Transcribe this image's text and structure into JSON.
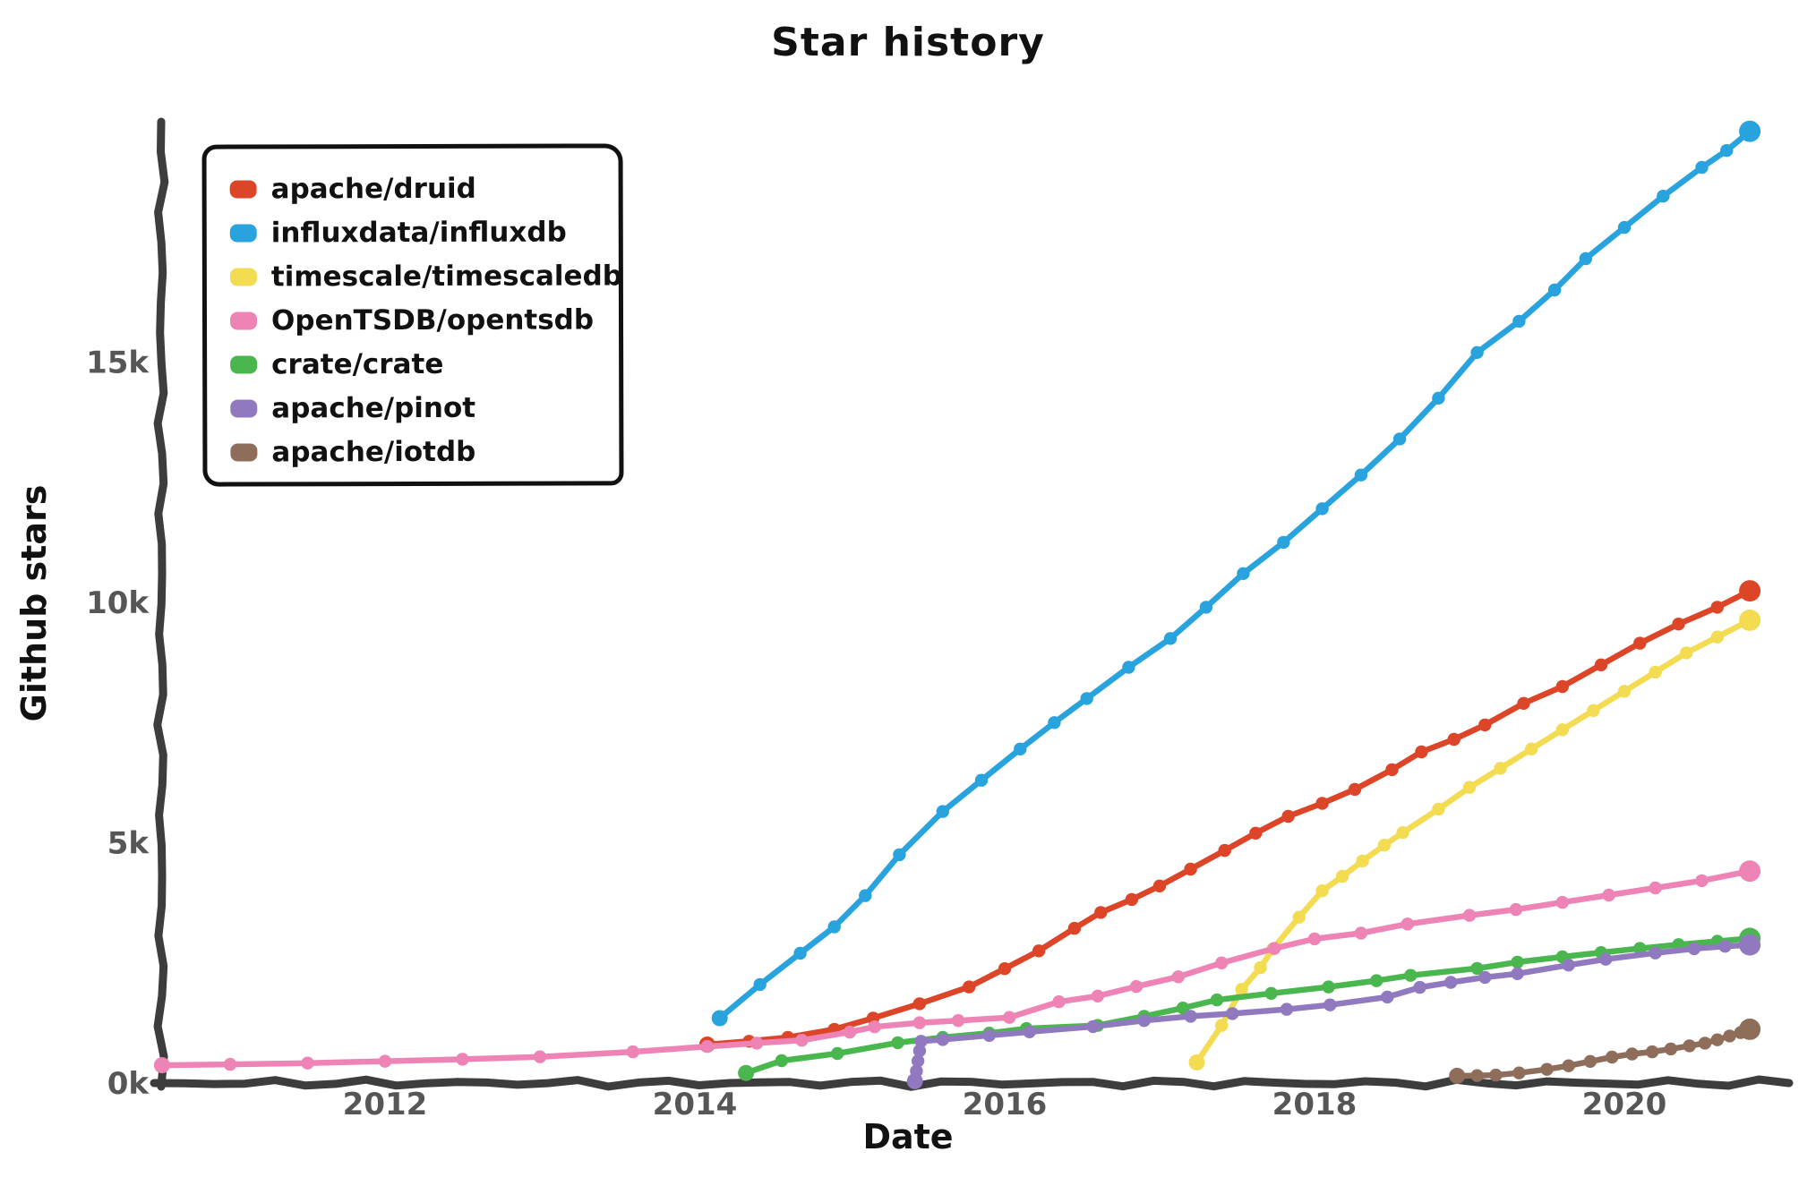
{
  "chart_data": {
    "type": "line",
    "title": "Star history",
    "xlabel": "Date",
    "ylabel": "Github stars",
    "grid": false,
    "legend_position": "top-left",
    "background_color": "#ffffff",
    "axis_color": "#3d3d3d",
    "tick_label_color": "#565656",
    "x_range": [
      2010.55,
      2021.0
    ],
    "y_range": [
      0,
      20500
    ],
    "x_ticks": [
      {
        "label": "2012",
        "year": 2012
      },
      {
        "label": "2014",
        "year": 2014
      },
      {
        "label": "2016",
        "year": 2016
      },
      {
        "label": "2018",
        "year": 2018
      },
      {
        "label": "2020",
        "year": 2020
      }
    ],
    "y_ticks": [
      {
        "label": "0k",
        "value": 0
      },
      {
        "label": "5k",
        "value": 5000
      },
      {
        "label": "10k",
        "value": 10000
      },
      {
        "label": "15k",
        "value": 15000
      }
    ],
    "series": [
      {
        "name": "apache/druid",
        "color": "#dd4528",
        "points": [
          [
            2014.08,
            800
          ],
          [
            2014.35,
            870
          ],
          [
            2014.6,
            950
          ],
          [
            2014.9,
            1120
          ],
          [
            2015.15,
            1350
          ],
          [
            2015.45,
            1650
          ],
          [
            2015.77,
            2000
          ],
          [
            2016.0,
            2380
          ],
          [
            2016.22,
            2750
          ],
          [
            2016.45,
            3220
          ],
          [
            2016.62,
            3550
          ],
          [
            2016.82,
            3820
          ],
          [
            2017.0,
            4100
          ],
          [
            2017.2,
            4450
          ],
          [
            2017.42,
            4840
          ],
          [
            2017.62,
            5200
          ],
          [
            2017.83,
            5550
          ],
          [
            2018.05,
            5820
          ],
          [
            2018.26,
            6110
          ],
          [
            2018.5,
            6520
          ],
          [
            2018.69,
            6890
          ],
          [
            2018.9,
            7150
          ],
          [
            2019.1,
            7450
          ],
          [
            2019.35,
            7900
          ],
          [
            2019.6,
            8250
          ],
          [
            2019.85,
            8700
          ],
          [
            2020.1,
            9150
          ],
          [
            2020.35,
            9550
          ],
          [
            2020.6,
            9900
          ],
          [
            2020.81,
            10240
          ]
        ]
      },
      {
        "name": "influxdata/influxdb",
        "color": "#28a3dd",
        "points": [
          [
            2014.16,
            1350
          ],
          [
            2014.42,
            2050
          ],
          [
            2014.68,
            2700
          ],
          [
            2014.9,
            3250
          ],
          [
            2015.1,
            3900
          ],
          [
            2015.32,
            4750
          ],
          [
            2015.6,
            5650
          ],
          [
            2015.85,
            6300
          ],
          [
            2016.1,
            6950
          ],
          [
            2016.32,
            7500
          ],
          [
            2016.53,
            8000
          ],
          [
            2016.8,
            8650
          ],
          [
            2017.07,
            9250
          ],
          [
            2017.3,
            9900
          ],
          [
            2017.54,
            10600
          ],
          [
            2017.8,
            11250
          ],
          [
            2018.05,
            11950
          ],
          [
            2018.3,
            12650
          ],
          [
            2018.55,
            13400
          ],
          [
            2018.8,
            14250
          ],
          [
            2019.05,
            15200
          ],
          [
            2019.32,
            15850
          ],
          [
            2019.55,
            16500
          ],
          [
            2019.75,
            17150
          ],
          [
            2020.0,
            17800
          ],
          [
            2020.25,
            18450
          ],
          [
            2020.5,
            19050
          ],
          [
            2020.66,
            19400
          ],
          [
            2020.81,
            19800
          ]
        ]
      },
      {
        "name": "timescale/timescaledb",
        "color": "#f3db52",
        "points": [
          [
            2017.24,
            430
          ],
          [
            2017.4,
            1200
          ],
          [
            2017.53,
            1950
          ],
          [
            2017.65,
            2400
          ],
          [
            2017.73,
            2790
          ],
          [
            2017.9,
            3450
          ],
          [
            2018.05,
            4000
          ],
          [
            2018.18,
            4300
          ],
          [
            2018.31,
            4620
          ],
          [
            2018.45,
            4950
          ],
          [
            2018.57,
            5210
          ],
          [
            2018.8,
            5700
          ],
          [
            2019.0,
            6150
          ],
          [
            2019.2,
            6550
          ],
          [
            2019.4,
            6950
          ],
          [
            2019.6,
            7350
          ],
          [
            2019.8,
            7750
          ],
          [
            2020.0,
            8150
          ],
          [
            2020.2,
            8550
          ],
          [
            2020.4,
            8950
          ],
          [
            2020.6,
            9280
          ],
          [
            2020.81,
            9630
          ]
        ]
      },
      {
        "name": "OpenTSDB/opentsdb",
        "color": "#ed84b5",
        "points": [
          [
            2010.56,
            370
          ],
          [
            2011.0,
            390
          ],
          [
            2011.5,
            415
          ],
          [
            2012.0,
            455
          ],
          [
            2012.5,
            495
          ],
          [
            2013.0,
            545
          ],
          [
            2013.6,
            650
          ],
          [
            2014.08,
            760
          ],
          [
            2014.4,
            830
          ],
          [
            2014.69,
            890
          ],
          [
            2015.0,
            1060
          ],
          [
            2015.16,
            1170
          ],
          [
            2015.45,
            1255
          ],
          [
            2015.7,
            1300
          ],
          [
            2016.03,
            1365
          ],
          [
            2016.35,
            1690
          ],
          [
            2016.6,
            1810
          ],
          [
            2016.85,
            2010
          ],
          [
            2017.12,
            2210
          ],
          [
            2017.4,
            2500
          ],
          [
            2017.74,
            2800
          ],
          [
            2018.0,
            3000
          ],
          [
            2018.3,
            3120
          ],
          [
            2018.6,
            3310
          ],
          [
            2019.0,
            3490
          ],
          [
            2019.3,
            3610
          ],
          [
            2019.6,
            3760
          ],
          [
            2019.9,
            3910
          ],
          [
            2020.2,
            4060
          ],
          [
            2020.5,
            4210
          ],
          [
            2020.81,
            4410
          ]
        ]
      },
      {
        "name": "crate/crate",
        "color": "#4ab74e",
        "points": [
          [
            2014.33,
            210
          ],
          [
            2014.56,
            465
          ],
          [
            2014.92,
            615
          ],
          [
            2015.31,
            840
          ],
          [
            2015.6,
            950
          ],
          [
            2015.9,
            1040
          ],
          [
            2016.14,
            1135
          ],
          [
            2016.6,
            1200
          ],
          [
            2016.9,
            1390
          ],
          [
            2017.15,
            1560
          ],
          [
            2017.37,
            1730
          ],
          [
            2017.72,
            1865
          ],
          [
            2018.09,
            2000
          ],
          [
            2018.4,
            2130
          ],
          [
            2018.62,
            2240
          ],
          [
            2019.05,
            2385
          ],
          [
            2019.31,
            2515
          ],
          [
            2019.6,
            2625
          ],
          [
            2019.85,
            2715
          ],
          [
            2020.1,
            2800
          ],
          [
            2020.35,
            2880
          ],
          [
            2020.6,
            2950
          ],
          [
            2020.81,
            3010
          ]
        ]
      },
      {
        "name": "apache/pinot",
        "color": "#9179c0",
        "points": [
          [
            2015.42,
            40
          ],
          [
            2015.43,
            250
          ],
          [
            2015.44,
            460
          ],
          [
            2015.45,
            670
          ],
          [
            2015.46,
            870
          ],
          [
            2015.6,
            905
          ],
          [
            2015.9,
            990
          ],
          [
            2016.16,
            1065
          ],
          [
            2016.57,
            1175
          ],
          [
            2016.9,
            1300
          ],
          [
            2017.2,
            1390
          ],
          [
            2017.47,
            1445
          ],
          [
            2017.82,
            1535
          ],
          [
            2018.1,
            1625
          ],
          [
            2018.47,
            1790
          ],
          [
            2018.68,
            1990
          ],
          [
            2018.88,
            2095
          ],
          [
            2019.1,
            2200
          ],
          [
            2019.31,
            2275
          ],
          [
            2019.64,
            2455
          ],
          [
            2019.88,
            2575
          ],
          [
            2020.2,
            2705
          ],
          [
            2020.45,
            2795
          ],
          [
            2020.65,
            2845
          ],
          [
            2020.81,
            2875
          ]
        ]
      },
      {
        "name": "apache/iotdb",
        "color": "#8e6d5a",
        "points": [
          [
            2018.92,
            150
          ],
          [
            2019.05,
            155
          ],
          [
            2019.17,
            165
          ],
          [
            2019.32,
            210
          ],
          [
            2019.5,
            285
          ],
          [
            2019.64,
            360
          ],
          [
            2019.78,
            450
          ],
          [
            2019.92,
            540
          ],
          [
            2020.05,
            605
          ],
          [
            2020.18,
            650
          ],
          [
            2020.3,
            710
          ],
          [
            2020.42,
            775
          ],
          [
            2020.52,
            830
          ],
          [
            2020.6,
            900
          ],
          [
            2020.68,
            980
          ],
          [
            2020.75,
            1050
          ],
          [
            2020.81,
            1120
          ]
        ]
      }
    ]
  }
}
